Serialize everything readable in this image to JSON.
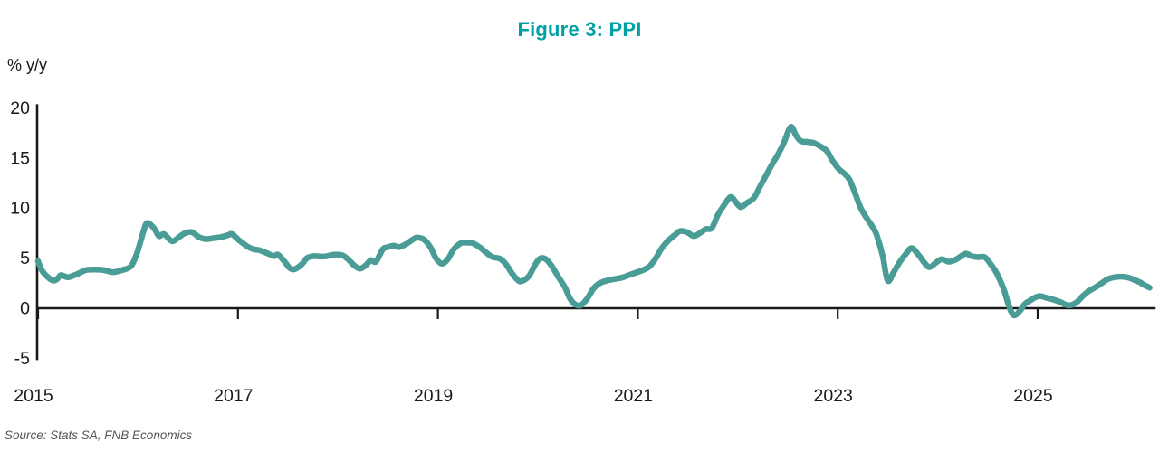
{
  "title": "Figure 3: PPI",
  "source": "Source: Stats SA, FNB Economics",
  "colors": {
    "title": "#00A1A5",
    "line": "#4A9C96",
    "axis": "#1a1a1a",
    "source": "#575757"
  },
  "chart_data": {
    "type": "line",
    "title": "Figure 3: PPI",
    "xlabel": "",
    "ylabel": "% y/y",
    "ylim": [
      -5,
      20
    ],
    "xlim": [
      2015,
      2026.18
    ],
    "yticks": [
      -5,
      0,
      5,
      10,
      15,
      20
    ],
    "xticks": [
      2015,
      2017,
      2019,
      2021,
      2023,
      2025
    ],
    "grid": false,
    "legend": "none",
    "series": [
      {
        "name": "PPI (% y/y)",
        "points": [
          [
            2015.0,
            4.7
          ],
          [
            2015.05,
            3.6
          ],
          [
            2015.14,
            2.8
          ],
          [
            2015.19,
            2.9
          ],
          [
            2015.23,
            3.3
          ],
          [
            2015.3,
            3.1
          ],
          [
            2015.39,
            3.4
          ],
          [
            2015.48,
            3.8
          ],
          [
            2015.57,
            3.85
          ],
          [
            2015.66,
            3.8
          ],
          [
            2015.75,
            3.6
          ],
          [
            2015.84,
            3.8
          ],
          [
            2015.93,
            4.2
          ],
          [
            2015.99,
            5.5
          ],
          [
            2016.05,
            7.5
          ],
          [
            2016.09,
            8.5
          ],
          [
            2016.16,
            8.0
          ],
          [
            2016.21,
            7.2
          ],
          [
            2016.26,
            7.4
          ],
          [
            2016.34,
            6.7
          ],
          [
            2016.41,
            7.1
          ],
          [
            2016.47,
            7.5
          ],
          [
            2016.54,
            7.6
          ],
          [
            2016.61,
            7.1
          ],
          [
            2016.68,
            6.9
          ],
          [
            2016.76,
            7.0
          ],
          [
            2016.83,
            7.1
          ],
          [
            2016.9,
            7.3
          ],
          [
            2016.94,
            7.4
          ],
          [
            2017.01,
            6.8
          ],
          [
            2017.09,
            6.2
          ],
          [
            2017.15,
            5.9
          ],
          [
            2017.21,
            5.8
          ],
          [
            2017.29,
            5.5
          ],
          [
            2017.36,
            5.2
          ],
          [
            2017.4,
            5.35
          ],
          [
            2017.47,
            4.6
          ],
          [
            2017.52,
            4.0
          ],
          [
            2017.57,
            3.9
          ],
          [
            2017.64,
            4.4
          ],
          [
            2017.69,
            5.0
          ],
          [
            2017.76,
            5.2
          ],
          [
            2017.83,
            5.15
          ],
          [
            2017.89,
            5.2
          ],
          [
            2017.96,
            5.35
          ],
          [
            2018.04,
            5.3
          ],
          [
            2018.1,
            4.9
          ],
          [
            2018.16,
            4.3
          ],
          [
            2018.22,
            3.95
          ],
          [
            2018.28,
            4.3
          ],
          [
            2018.33,
            4.8
          ],
          [
            2018.38,
            4.65
          ],
          [
            2018.45,
            5.9
          ],
          [
            2018.5,
            6.1
          ],
          [
            2018.56,
            6.25
          ],
          [
            2018.61,
            6.1
          ],
          [
            2018.68,
            6.4
          ],
          [
            2018.74,
            6.8
          ],
          [
            2018.79,
            7.05
          ],
          [
            2018.87,
            6.8
          ],
          [
            2018.93,
            6.0
          ],
          [
            2018.98,
            5.0
          ],
          [
            2019.04,
            4.45
          ],
          [
            2019.1,
            4.9
          ],
          [
            2019.16,
            5.9
          ],
          [
            2019.23,
            6.5
          ],
          [
            2019.29,
            6.55
          ],
          [
            2019.35,
            6.5
          ],
          [
            2019.43,
            6.0
          ],
          [
            2019.49,
            5.5
          ],
          [
            2019.55,
            5.1
          ],
          [
            2019.62,
            4.95
          ],
          [
            2019.68,
            4.4
          ],
          [
            2019.74,
            3.5
          ],
          [
            2019.8,
            2.8
          ],
          [
            2019.84,
            2.7
          ],
          [
            2019.91,
            3.2
          ],
          [
            2019.97,
            4.3
          ],
          [
            2020.02,
            4.95
          ],
          [
            2020.08,
            4.9
          ],
          [
            2020.14,
            4.2
          ],
          [
            2020.2,
            3.2
          ],
          [
            2020.27,
            2.1
          ],
          [
            2020.32,
            1.0
          ],
          [
            2020.37,
            0.4
          ],
          [
            2020.43,
            0.3
          ],
          [
            2020.49,
            0.9
          ],
          [
            2020.56,
            2.0
          ],
          [
            2020.62,
            2.5
          ],
          [
            2020.69,
            2.75
          ],
          [
            2020.76,
            2.9
          ],
          [
            2020.84,
            3.05
          ],
          [
            2020.91,
            3.3
          ],
          [
            2020.98,
            3.55
          ],
          [
            2021.05,
            3.8
          ],
          [
            2021.12,
            4.2
          ],
          [
            2021.18,
            5.0
          ],
          [
            2021.24,
            6.0
          ],
          [
            2021.31,
            6.8
          ],
          [
            2021.37,
            7.3
          ],
          [
            2021.42,
            7.7
          ],
          [
            2021.49,
            7.6
          ],
          [
            2021.56,
            7.2
          ],
          [
            2021.62,
            7.5
          ],
          [
            2021.68,
            7.9
          ],
          [
            2021.74,
            8.0
          ],
          [
            2021.8,
            9.3
          ],
          [
            2021.87,
            10.4
          ],
          [
            2021.93,
            11.1
          ],
          [
            2021.98,
            10.6
          ],
          [
            2022.03,
            10.1
          ],
          [
            2022.09,
            10.5
          ],
          [
            2022.16,
            11.0
          ],
          [
            2022.22,
            12.1
          ],
          [
            2022.28,
            13.2
          ],
          [
            2022.34,
            14.3
          ],
          [
            2022.41,
            15.5
          ],
          [
            2022.46,
            16.5
          ],
          [
            2022.53,
            18.1
          ],
          [
            2022.58,
            17.3
          ],
          [
            2022.63,
            16.7
          ],
          [
            2022.7,
            16.6
          ],
          [
            2022.76,
            16.5
          ],
          [
            2022.82,
            16.2
          ],
          [
            2022.89,
            15.7
          ],
          [
            2022.95,
            14.7
          ],
          [
            2023.01,
            13.9
          ],
          [
            2023.07,
            13.4
          ],
          [
            2023.12,
            12.8
          ],
          [
            2023.18,
            11.3
          ],
          [
            2023.23,
            10.0
          ],
          [
            2023.29,
            9.0
          ],
          [
            2023.35,
            8.1
          ],
          [
            2023.39,
            7.3
          ],
          [
            2023.45,
            5.2
          ],
          [
            2023.5,
            2.75
          ],
          [
            2023.56,
            3.6
          ],
          [
            2023.62,
            4.6
          ],
          [
            2023.68,
            5.4
          ],
          [
            2023.74,
            6.0
          ],
          [
            2023.81,
            5.3
          ],
          [
            2023.87,
            4.5
          ],
          [
            2023.92,
            4.1
          ],
          [
            2023.99,
            4.6
          ],
          [
            2024.04,
            4.9
          ],
          [
            2024.11,
            4.65
          ],
          [
            2024.17,
            4.8
          ],
          [
            2024.22,
            5.1
          ],
          [
            2024.28,
            5.45
          ],
          [
            2024.34,
            5.2
          ],
          [
            2024.4,
            5.1
          ],
          [
            2024.47,
            5.1
          ],
          [
            2024.53,
            4.4
          ],
          [
            2024.59,
            3.5
          ],
          [
            2024.66,
            1.9
          ],
          [
            2024.71,
            0.3
          ],
          [
            2024.76,
            -0.7
          ],
          [
            2024.82,
            -0.3
          ],
          [
            2024.87,
            0.4
          ],
          [
            2024.93,
            0.8
          ],
          [
            2024.98,
            1.1
          ],
          [
            2025.03,
            1.2
          ],
          [
            2025.1,
            1.0
          ],
          [
            2025.16,
            0.85
          ],
          [
            2025.23,
            0.6
          ],
          [
            2025.28,
            0.35
          ],
          [
            2025.33,
            0.3
          ],
          [
            2025.39,
            0.6
          ],
          [
            2025.45,
            1.2
          ],
          [
            2025.51,
            1.7
          ],
          [
            2025.58,
            2.1
          ],
          [
            2025.64,
            2.5
          ],
          [
            2025.7,
            2.9
          ],
          [
            2025.77,
            3.1
          ],
          [
            2025.83,
            3.15
          ],
          [
            2025.89,
            3.1
          ],
          [
            2025.95,
            2.9
          ],
          [
            2026.02,
            2.6
          ],
          [
            2026.07,
            2.3
          ],
          [
            2026.12,
            2.05
          ]
        ]
      }
    ]
  }
}
